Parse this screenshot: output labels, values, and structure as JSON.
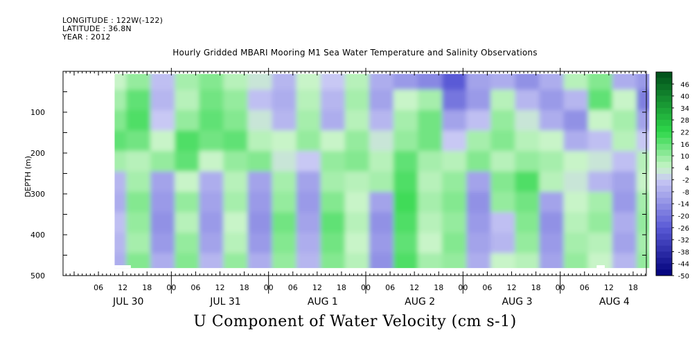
{
  "header": {
    "longitude": "LONGITUDE : 122W(-122)",
    "latitude": "LATITUDE : 36.8N",
    "year": "YEAR : 2012"
  },
  "colors": {
    "negative_deep": "#00007a",
    "negative_mid": "#5a5ad6",
    "negative_light": "#c8c8f4",
    "positive_light": "#c8f4c8",
    "positive_mid": "#2ed84a",
    "positive_deep": "#004d1a",
    "missing": "#ffffff"
  },
  "chart_data": {
    "type": "heatmap",
    "title": "Hourly Gridded MBARI Mooring M1 Sea Water Temperature and Salinity Observations",
    "variable": "U Component of Water Velocity (cm s-1)",
    "ylabel": "DEPTH (m)",
    "ylim": [
      500,
      0
    ],
    "y_ticks": [
      100,
      200,
      300,
      400,
      500
    ],
    "data_extent": {
      "depth_top": 10,
      "depth_bottom": 485,
      "hour_start": 10,
      "hour_end": 142
    },
    "x_hour_ticks": [
      "06",
      "12",
      "18",
      "00",
      "06",
      "12",
      "18",
      "00",
      "06",
      "12",
      "18",
      "00",
      "06",
      "12",
      "18",
      "00",
      "06",
      "12",
      "18",
      "00",
      "06",
      "12",
      "18",
      "00",
      "06",
      "12",
      "18"
    ],
    "x_hour_values": [
      6,
      12,
      18,
      24,
      30,
      36,
      42,
      48,
      54,
      60,
      66,
      72,
      78,
      84,
      90,
      96,
      102,
      108,
      114,
      120,
      126,
      132,
      138,
      144,
      150,
      156,
      162
    ],
    "x_day_labels": [
      "JUL 30",
      "JUL 31",
      "AUG  1",
      "AUG  2",
      "AUG  3",
      "AUG  4"
    ],
    "x_day_centers": [
      12,
      36,
      60,
      84,
      108,
      132
    ],
    "xlim": [
      0,
      144
    ],
    "colorbar_labels": [
      "46",
      "40",
      "34",
      "28",
      "22",
      "16",
      "10",
      "4",
      "-2",
      "-8",
      "-14",
      "-20",
      "-26",
      "-32",
      "-38",
      "-44",
      "-50"
    ],
    "colorbar_range": [
      -50,
      52
    ],
    "colorbar_step": 3,
    "depth_levels": [
      25,
      75,
      125,
      175,
      225,
      275,
      325,
      375,
      425,
      475
    ],
    "time_hours": [
      10,
      16,
      22,
      28,
      34,
      40,
      46,
      52,
      58,
      64,
      70,
      76,
      82,
      88,
      94,
      100,
      106,
      112,
      118,
      124,
      130,
      136,
      142
    ],
    "values": [
      [
        4,
        10,
        -4,
        8,
        12,
        6,
        2,
        -6,
        4,
        -2,
        6,
        -8,
        -12,
        -16,
        -26,
        -10,
        -8,
        -14,
        -8,
        6,
        12,
        -8,
        -12
      ],
      [
        8,
        16,
        -6,
        6,
        14,
        10,
        -4,
        -8,
        6,
        -6,
        8,
        -10,
        4,
        8,
        -20,
        -12,
        6,
        -6,
        -12,
        -6,
        16,
        4,
        -18
      ],
      [
        12,
        18,
        -2,
        10,
        16,
        12,
        2,
        -6,
        8,
        -8,
        6,
        -6,
        8,
        14,
        -10,
        -4,
        10,
        2,
        -8,
        -14,
        4,
        8,
        -10
      ],
      [
        16,
        14,
        4,
        18,
        14,
        16,
        6,
        4,
        10,
        4,
        10,
        2,
        10,
        14,
        -2,
        8,
        12,
        6,
        4,
        -8,
        -4,
        6,
        -2
      ],
      [
        8,
        6,
        10,
        16,
        4,
        10,
        12,
        2,
        -2,
        10,
        12,
        6,
        16,
        8,
        6,
        12,
        6,
        10,
        8,
        4,
        2,
        -4,
        6
      ],
      [
        -6,
        8,
        -10,
        4,
        -8,
        6,
        -10,
        8,
        -10,
        8,
        6,
        8,
        18,
        6,
        10,
        -10,
        12,
        18,
        6,
        2,
        -6,
        -10,
        4
      ],
      [
        -8,
        12,
        -12,
        10,
        -10,
        8,
        -12,
        10,
        -12,
        12,
        4,
        -10,
        20,
        8,
        12,
        -14,
        10,
        14,
        -10,
        4,
        8,
        -12,
        8
      ],
      [
        -4,
        10,
        -14,
        6,
        -12,
        4,
        -14,
        14,
        -10,
        16,
        6,
        -14,
        18,
        6,
        10,
        -12,
        -4,
        12,
        -14,
        6,
        10,
        -8,
        10
      ],
      [
        -6,
        8,
        -12,
        10,
        -10,
        6,
        -12,
        12,
        -8,
        14,
        4,
        -12,
        16,
        4,
        12,
        -10,
        -6,
        10,
        -12,
        8,
        6,
        -10,
        8
      ],
      [
        -8,
        12,
        -8,
        12,
        -6,
        10,
        -8,
        10,
        -6,
        12,
        6,
        -14,
        18,
        8,
        10,
        -8,
        4,
        6,
        -10,
        10,
        4,
        -6,
        10
      ]
    ],
    "missing_patches": [
      {
        "hour_start": 10,
        "hour_end": 14,
        "depth_top": 478,
        "depth_bottom": 485
      },
      {
        "hour_start": 129,
        "hour_end": 131,
        "depth_top": 478,
        "depth_bottom": 485
      }
    ]
  }
}
